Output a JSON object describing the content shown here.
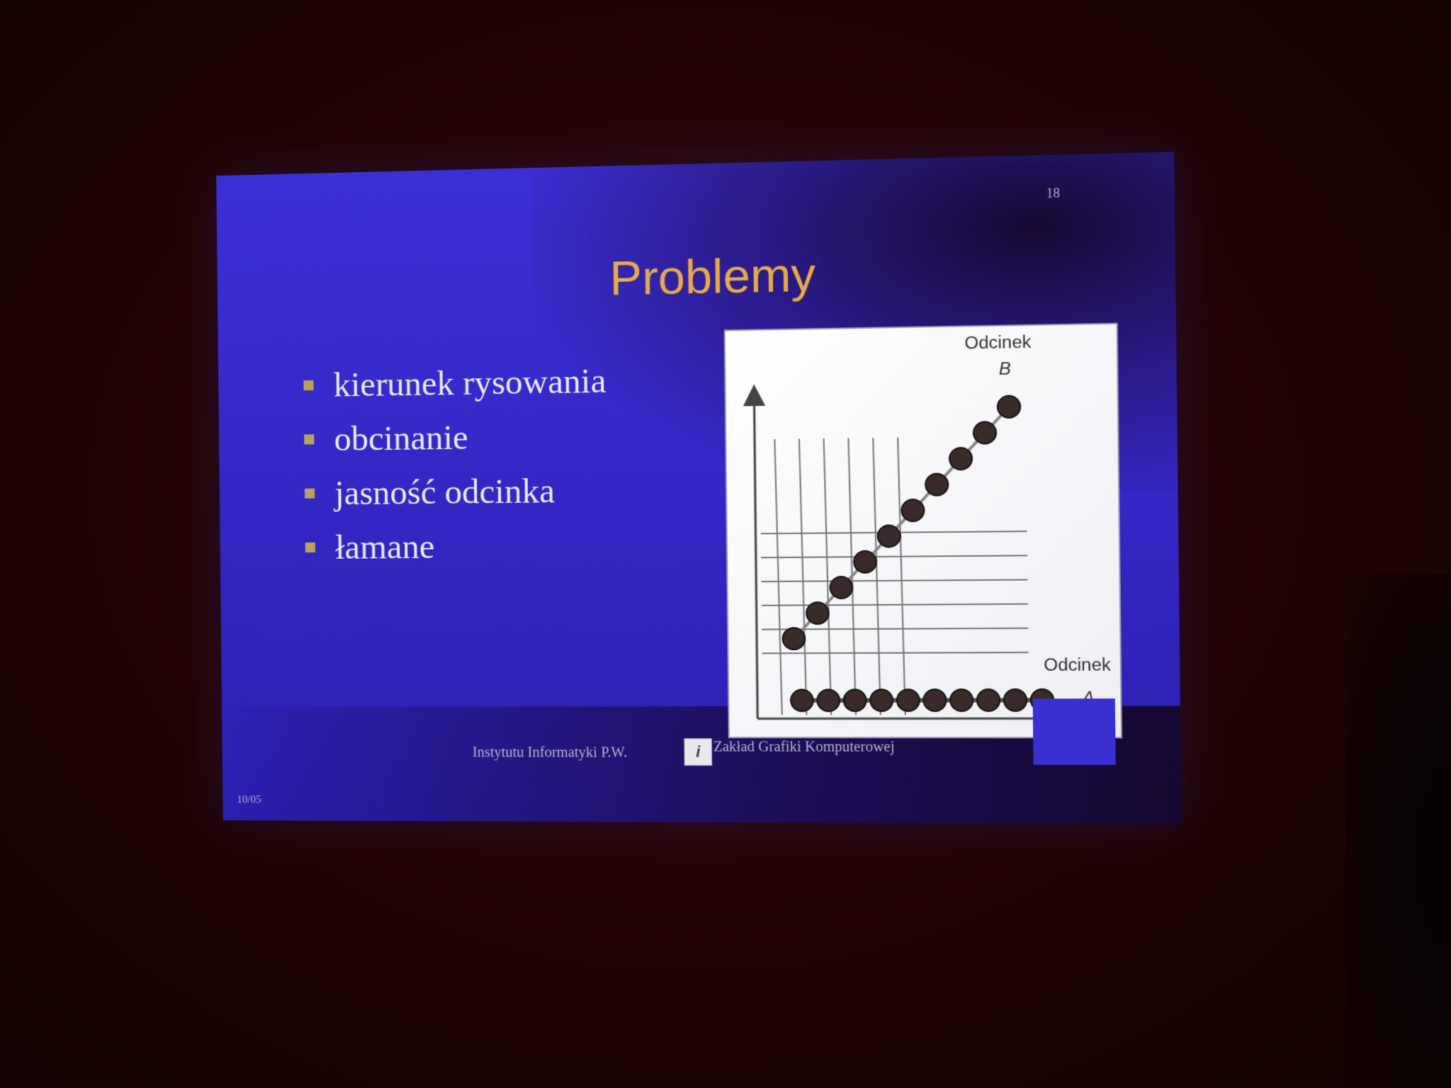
{
  "slide": {
    "number": "18",
    "title": "Problemy",
    "bullets": [
      "kierunek rysowania",
      "obcinanie",
      "jasność odcinka",
      "łamane"
    ],
    "figure": {
      "label_b_word": "Odcinek",
      "label_b_letter": "B",
      "label_a_word": "Odcinek",
      "label_a_letter": "A"
    },
    "footer_left": "Instytutu Informatyki P.W.",
    "footer_right": "Zakład Grafiki Komputerowej",
    "date": "10/05"
  },
  "colors": {
    "background": "#240505",
    "slide": "#3326c2",
    "title": "#e8a94a",
    "bullet": "#b9a25e",
    "bullet_text": "#ece8f4"
  }
}
